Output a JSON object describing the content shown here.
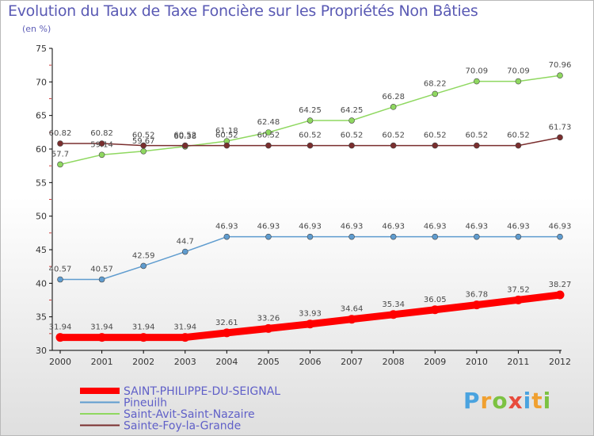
{
  "title": "Evolution du Taux de Taxe Foncière sur les Propriétés Non Bâties",
  "subtitle": "(en %)",
  "logo": {
    "text": "Proxiti",
    "colors": [
      "#4aa3df",
      "#f0a030",
      "#7cc242",
      "#e84b3c",
      "#4aa3df",
      "#f0a030",
      "#7cc242"
    ]
  },
  "chart_data": {
    "type": "line",
    "title": "Evolution du Taux de Taxe Foncière sur les Propriétés Non Bâties",
    "ylabel": "(en %)",
    "xlabel": "",
    "ylim": [
      30,
      75
    ],
    "yticks": [
      30,
      35,
      40,
      45,
      50,
      55,
      60,
      65,
      70,
      75
    ],
    "grid": false,
    "legend_position": "bottom-left",
    "x": [
      "2000",
      "2001",
      "2002",
      "2003",
      "2004",
      "2005",
      "2006",
      "2007",
      "2008",
      "2009",
      "2010",
      "2011",
      "2012"
    ],
    "series": [
      {
        "name": "SAINT-PHILIPPE-DU-SEIGNAL",
        "color": "#ff0000",
        "values": [
          31.94,
          31.94,
          31.94,
          31.94,
          32.61,
          33.26,
          33.93,
          34.64,
          35.34,
          36.05,
          36.78,
          37.52,
          38.27
        ]
      },
      {
        "name": "Pineuilh",
        "color": "#5f9ccf",
        "values": [
          40.57,
          40.57,
          42.59,
          44.7,
          46.93,
          46.93,
          46.93,
          46.93,
          46.93,
          46.93,
          46.93,
          46.93,
          46.93
        ]
      },
      {
        "name": "Saint-Avit-Saint-Nazaire",
        "color": "#8fd860",
        "values": [
          57.7,
          59.14,
          59.67,
          60.38,
          61.18,
          62.48,
          64.25,
          64.25,
          66.28,
          68.22,
          70.09,
          70.09,
          70.96
        ]
      },
      {
        "name": "Sainte-Foy-la-Grande",
        "color": "#7a2e2e",
        "values": [
          60.82,
          60.82,
          60.52,
          60.52,
          60.52,
          60.52,
          60.52,
          60.52,
          60.52,
          60.52,
          60.52,
          60.52,
          61.73
        ]
      }
    ]
  }
}
